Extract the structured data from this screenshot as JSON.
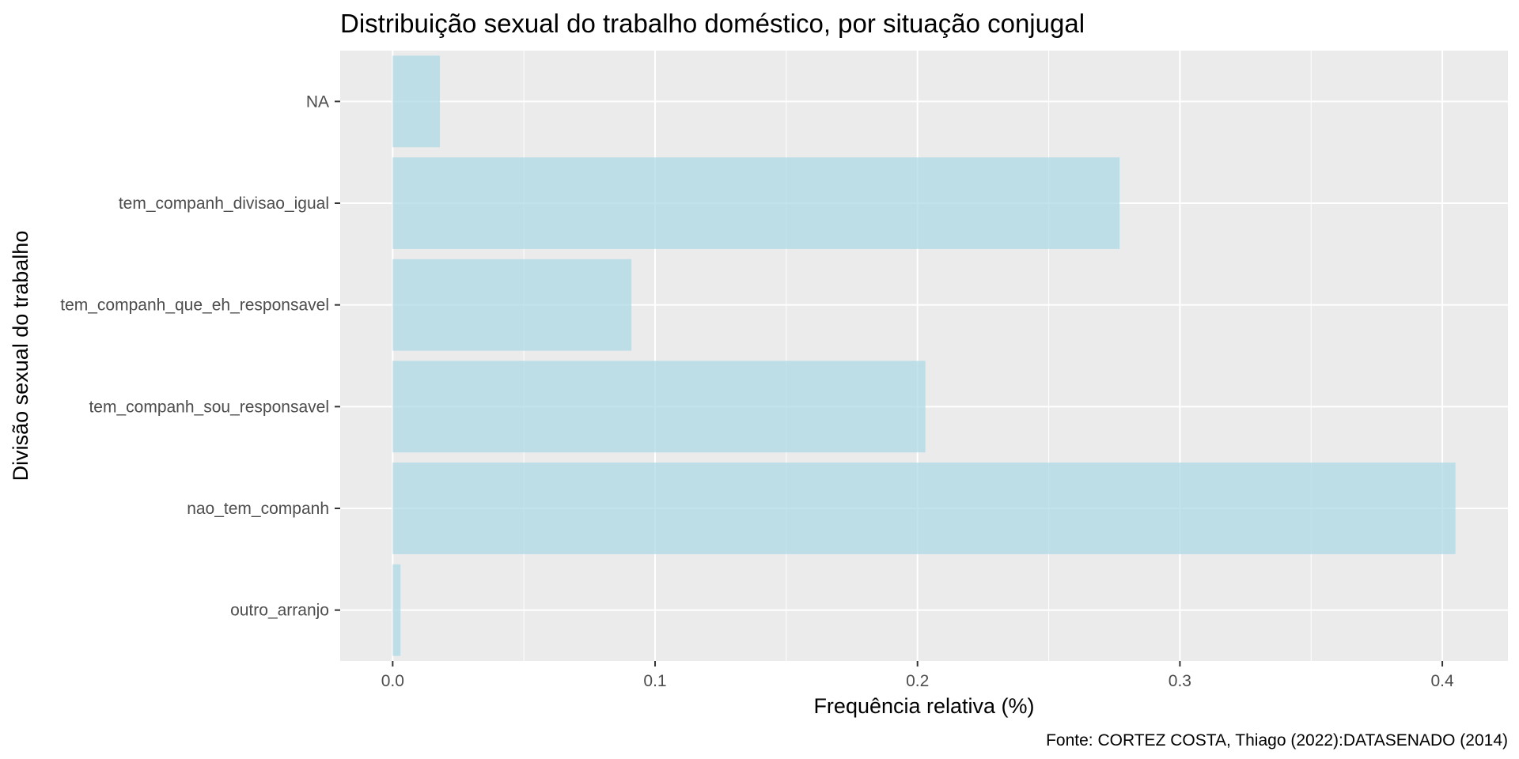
{
  "chart_data": {
    "type": "bar",
    "orientation": "horizontal",
    "title": "Distribuição sexual do trabalho doméstico, por situação conjugal",
    "xlabel": "Frequência relativa (%)",
    "ylabel": "Divisão sexual do trabalho",
    "caption": "Fonte: CORTEZ COSTA, Thiago (2022):DATASENADO (2014)",
    "categories": [
      "NA",
      "tem_companh_divisao_igual",
      "tem_companh_que_eh_responsavel",
      "tem_companh_sou_responsavel",
      "nao_tem_companh",
      "outro_arranjo"
    ],
    "values": [
      0.018,
      0.277,
      0.091,
      0.203,
      0.405,
      0.003
    ],
    "xlim": [
      -0.02,
      0.425
    ],
    "xticks": [
      0.0,
      0.1,
      0.2,
      0.3,
      0.4
    ],
    "xtick_labels": [
      "0.0",
      "0.1",
      "0.2",
      "0.3",
      "0.4"
    ],
    "grid": true,
    "colors": {
      "bar": "#add8e6",
      "panel_background": "#ebebeb",
      "grid": "#ffffff",
      "tick_text": "#4d4d4d"
    }
  }
}
